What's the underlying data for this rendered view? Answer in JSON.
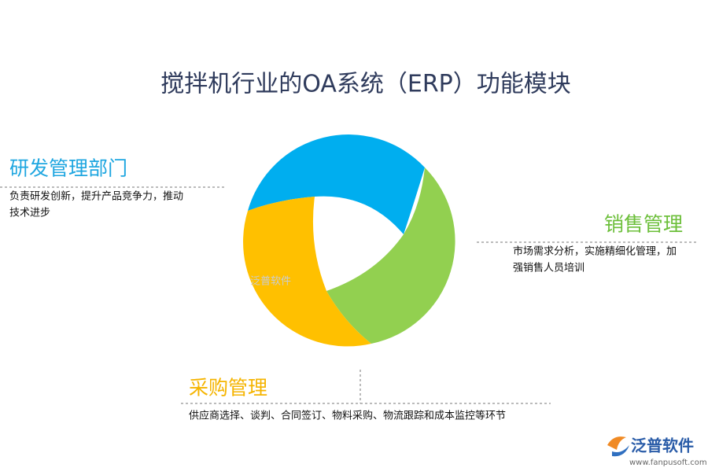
{
  "title": "搅拌机行业的OA系统（ERP）功能模块",
  "sections": [
    {
      "heading": "研发管理部门",
      "description": [
        "负责研发创新，提升产品竞争力，推动",
        "技术进步"
      ]
    },
    {
      "heading": "销售管理",
      "description": [
        "市场需求分析，实施精细化管理，加",
        "强销售人员培训"
      ]
    },
    {
      "heading": "采购管理",
      "description": [
        "供应商选择、谈判、合同签订、物料采购、物流跟踪和成本监控等环节"
      ]
    }
  ],
  "watermark": "泛普软件",
  "logo": {
    "name": "泛普软件",
    "url": "www.fanpusoft.com"
  }
}
